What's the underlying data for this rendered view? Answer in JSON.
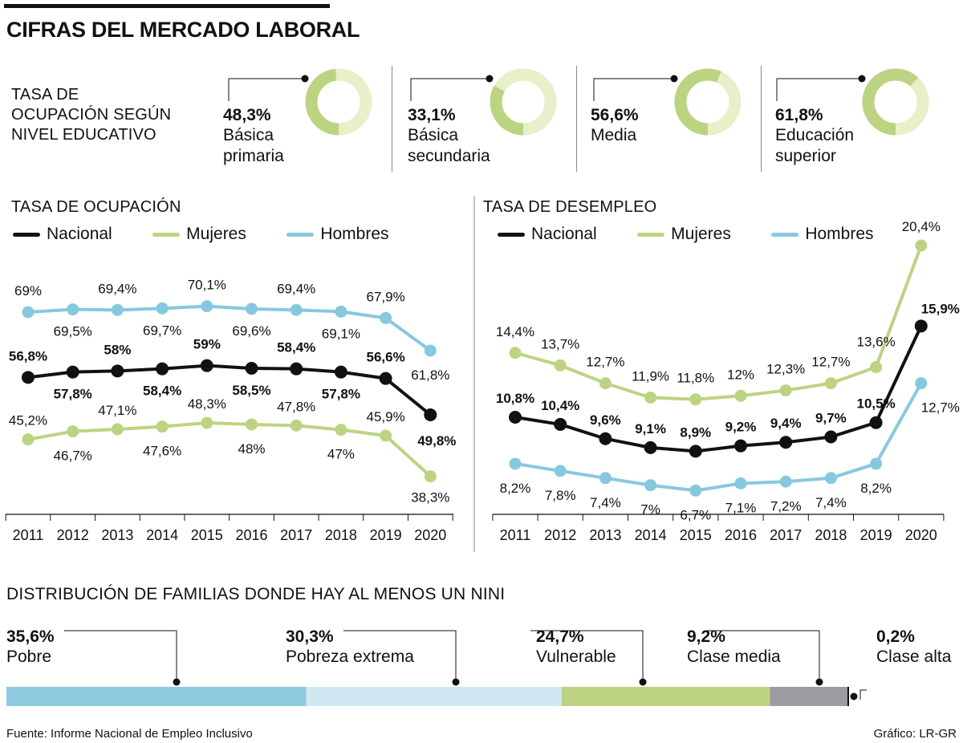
{
  "title": "CIFRAS DEL MERCADO LABORAL",
  "education": {
    "label_lines": [
      "TASA DE",
      "OCUPACIÓN SEGÚN",
      "NIVEL EDUCATIVO"
    ],
    "items": [
      {
        "pct": "48,3%",
        "value": 48.3,
        "name_lines": [
          "Básica",
          "primaria"
        ]
      },
      {
        "pct": "33,1%",
        "value": 33.1,
        "name_lines": [
          "Básica",
          "secundaria"
        ]
      },
      {
        "pct": "56,6%",
        "value": 56.6,
        "name_lines": [
          "Media"
        ]
      },
      {
        "pct": "61,8%",
        "value": 61.8,
        "name_lines": [
          "Educación",
          "superior"
        ]
      }
    ]
  },
  "colors": {
    "nacional": "#111111",
    "mujeres": "#bcd481",
    "hombres": "#86c9df",
    "ring_bg": "#e7f0c9",
    "bar_pobre": "#8fcbe0",
    "bar_extrema": "#cfe8f1",
    "bar_vulnerable": "#bcd481",
    "bar_media": "#9c9ca2"
  },
  "chart_data": [
    {
      "type": "line",
      "title": "TASA DE OCUPACIÓN",
      "categories": [
        "2011",
        "2012",
        "2013",
        "2014",
        "2015",
        "2016",
        "2017",
        "2018",
        "2019",
        "2020"
      ],
      "ylim": [
        30,
        75
      ],
      "series": [
        {
          "name": "Nacional",
          "values": [
            56.8,
            57.8,
            58,
            58.4,
            59,
            58.5,
            58.4,
            57.8,
            56.6,
            49.8
          ],
          "labels": [
            "56,8%",
            "57,8%",
            "58%",
            "58,4%",
            "59%",
            "58,5%",
            "58,4%",
            "57,8%",
            "56,6%",
            "49,8%"
          ]
        },
        {
          "name": "Mujeres",
          "values": [
            45.2,
            46.7,
            47.1,
            47.6,
            48.3,
            48,
            47.8,
            47,
            45.9,
            38.3
          ],
          "labels": [
            "45,2%",
            "46,7%",
            "47,1%",
            "47,6%",
            "48,3%",
            "48%",
            "47,8%",
            "47%",
            "45,9%",
            "38,3%"
          ]
        },
        {
          "name": "Hombres",
          "values": [
            69,
            69.5,
            69.4,
            69.7,
            70.1,
            69.6,
            69.4,
            69.1,
            67.9,
            61.8
          ],
          "labels": [
            "69%",
            "69,5%",
            "69,4%",
            "69,7%",
            "70,1%",
            "69,6%",
            "69,4%",
            "69,1%",
            "67,9%",
            "61,8%"
          ]
        }
      ]
    },
    {
      "type": "line",
      "title": "TASA DE DESEMPLEO",
      "categories": [
        "2011",
        "2012",
        "2013",
        "2014",
        "2015",
        "2016",
        "2017",
        "2018",
        "2019",
        "2020"
      ],
      "ylim": [
        0,
        22
      ],
      "series": [
        {
          "name": "Nacional",
          "values": [
            10.8,
            10.4,
            9.6,
            9.1,
            8.9,
            9.2,
            9.4,
            9.7,
            10.5,
            15.9
          ],
          "labels": [
            "10,8%",
            "10,4%",
            "9,6%",
            "9,1%",
            "8,9%",
            "9,2%",
            "9,4%",
            "9,7%",
            "10,5%",
            "15,9%"
          ]
        },
        {
          "name": "Mujeres",
          "values": [
            14.4,
            13.7,
            12.7,
            11.9,
            11.8,
            12,
            12.3,
            12.7,
            13.6,
            20.4
          ],
          "labels": [
            "14,4%",
            "13,7%",
            "12,7%",
            "11,9%",
            "11,8%",
            "12%",
            "12,3%",
            "12,7%",
            "13,6%",
            "20,4%"
          ]
        },
        {
          "name": "Hombres",
          "values": [
            8.2,
            7.8,
            7.4,
            7,
            6.7,
            7.1,
            7.2,
            7.4,
            8.2,
            12.7
          ],
          "labels": [
            "8,2%",
            "7,8%",
            "7,4%",
            "7%",
            "6,7%",
            "7,1%",
            "7,2%",
            "7,4%",
            "8,2%",
            "12,7%"
          ]
        }
      ]
    },
    {
      "type": "bar",
      "title": "DISTRIBUCIÓN DE FAMILIAS DONDE HAY AL MENOS UN NINI",
      "categories": [
        "Pobre",
        "Pobreza extrema",
        "Vulnerable",
        "Clase media",
        "Clase alta"
      ],
      "values": [
        35.6,
        30.3,
        24.7,
        9.2,
        0.2
      ],
      "labels": [
        "35,6%",
        "30,3%",
        "24,7%",
        "9,2%",
        "0,2%"
      ]
    }
  ],
  "footer": {
    "source": "Fuente: Informe Nacional de Empleo Inclusivo",
    "credit": "Gráfico: LR-GR"
  }
}
